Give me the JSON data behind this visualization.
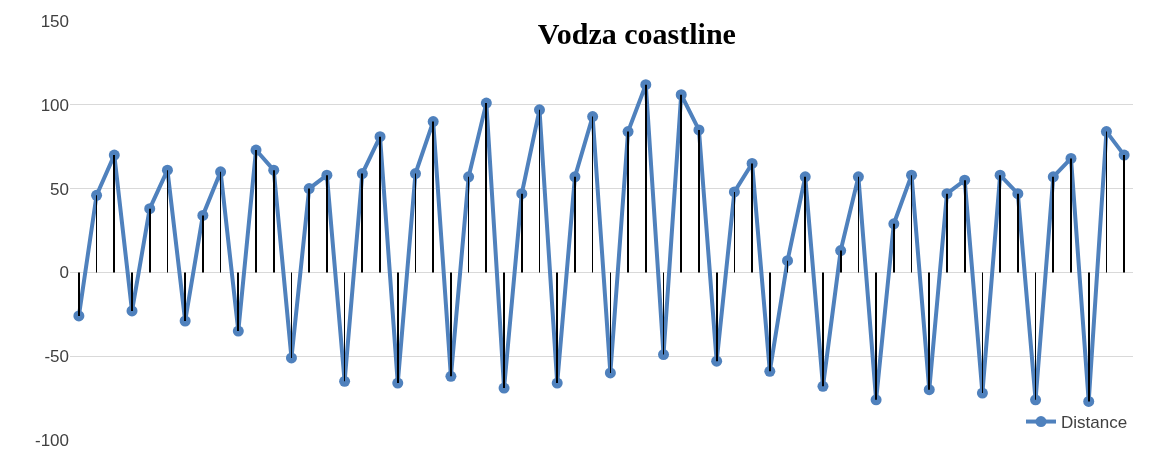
{
  "chart_data": {
    "type": "line",
    "title": "Vodza coastline",
    "categories": [
      null,
      null,
      null,
      null,
      null,
      null,
      null,
      null,
      null,
      null,
      null,
      null,
      null,
      null,
      null,
      null,
      null,
      null,
      null,
      null,
      null,
      null,
      null,
      null,
      null,
      null,
      null,
      null,
      null,
      null,
      null,
      null,
      null,
      null,
      null,
      null,
      null,
      null,
      null,
      null,
      null,
      null,
      null,
      null,
      null,
      null,
      null,
      null,
      null,
      null,
      null,
      null,
      null,
      null,
      null,
      null,
      null,
      null,
      null,
      null
    ],
    "series": [
      {
        "name": "Distance",
        "color": "#4f81bd",
        "marker": "circle",
        "values": [
          -26,
          46,
          70,
          -23,
          38,
          61,
          -29,
          34,
          60,
          -35,
          73,
          61,
          -51,
          50,
          58,
          -65,
          59,
          81,
          -66,
          59,
          90,
          -62,
          57,
          101,
          -69,
          47,
          97,
          -66,
          57,
          93,
          -60,
          84,
          112,
          -49,
          106,
          85,
          -53,
          48,
          65,
          -59,
          7,
          57,
          -68,
          13,
          57,
          -76,
          29,
          58,
          -70,
          47,
          55,
          -72,
          58,
          47,
          -76,
          57,
          68,
          -77,
          84,
          70
        ]
      },
      {
        "type": "bar",
        "color": "#000000",
        "values": [
          -26,
          46,
          70,
          -23,
          38,
          61,
          -29,
          34,
          60,
          -35,
          73,
          61,
          -51,
          50,
          58,
          -65,
          59,
          81,
          -66,
          59,
          90,
          -62,
          57,
          101,
          -69,
          47,
          97,
          -66,
          57,
          93,
          -60,
          84,
          112,
          -49,
          106,
          85,
          -53,
          48,
          65,
          -59,
          7,
          57,
          -68,
          13,
          57,
          -76,
          29,
          58,
          -70,
          47,
          55,
          -72,
          58,
          47,
          -76,
          57,
          68,
          -77,
          84,
          70
        ]
      }
    ],
    "ylim": [
      -100,
      150
    ],
    "yticks": [
      -100,
      -50,
      0,
      50,
      100,
      150
    ],
    "grid": "y",
    "legend": "bottom right",
    "tick_labels": "y"
  }
}
